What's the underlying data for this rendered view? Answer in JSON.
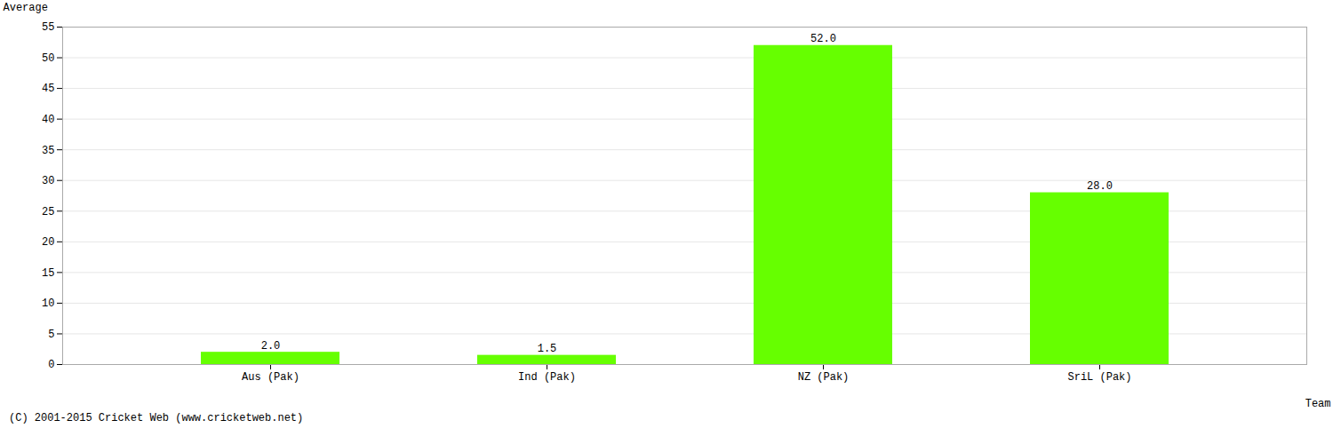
{
  "chart_data": {
    "type": "bar",
    "categories": [
      "Aus (Pak)",
      "Ind (Pak)",
      "NZ (Pak)",
      "SriL (Pak)"
    ],
    "values": [
      2.0,
      1.5,
      52.0,
      28.0
    ],
    "value_labels": [
      "2.0",
      "1.5",
      "52.0",
      "28.0"
    ],
    "data_labels": true,
    "color": "#66ff00",
    "xlabel": "Team",
    "ylabel": "Average",
    "ylim": [
      0,
      55
    ],
    "yticks": [
      0,
      5,
      10,
      15,
      20,
      25,
      30,
      35,
      40,
      45,
      50,
      55
    ],
    "grid": true,
    "annotations": [
      "(C) 2001-2015 Cricket Web (www.cricketweb.net)"
    ]
  }
}
